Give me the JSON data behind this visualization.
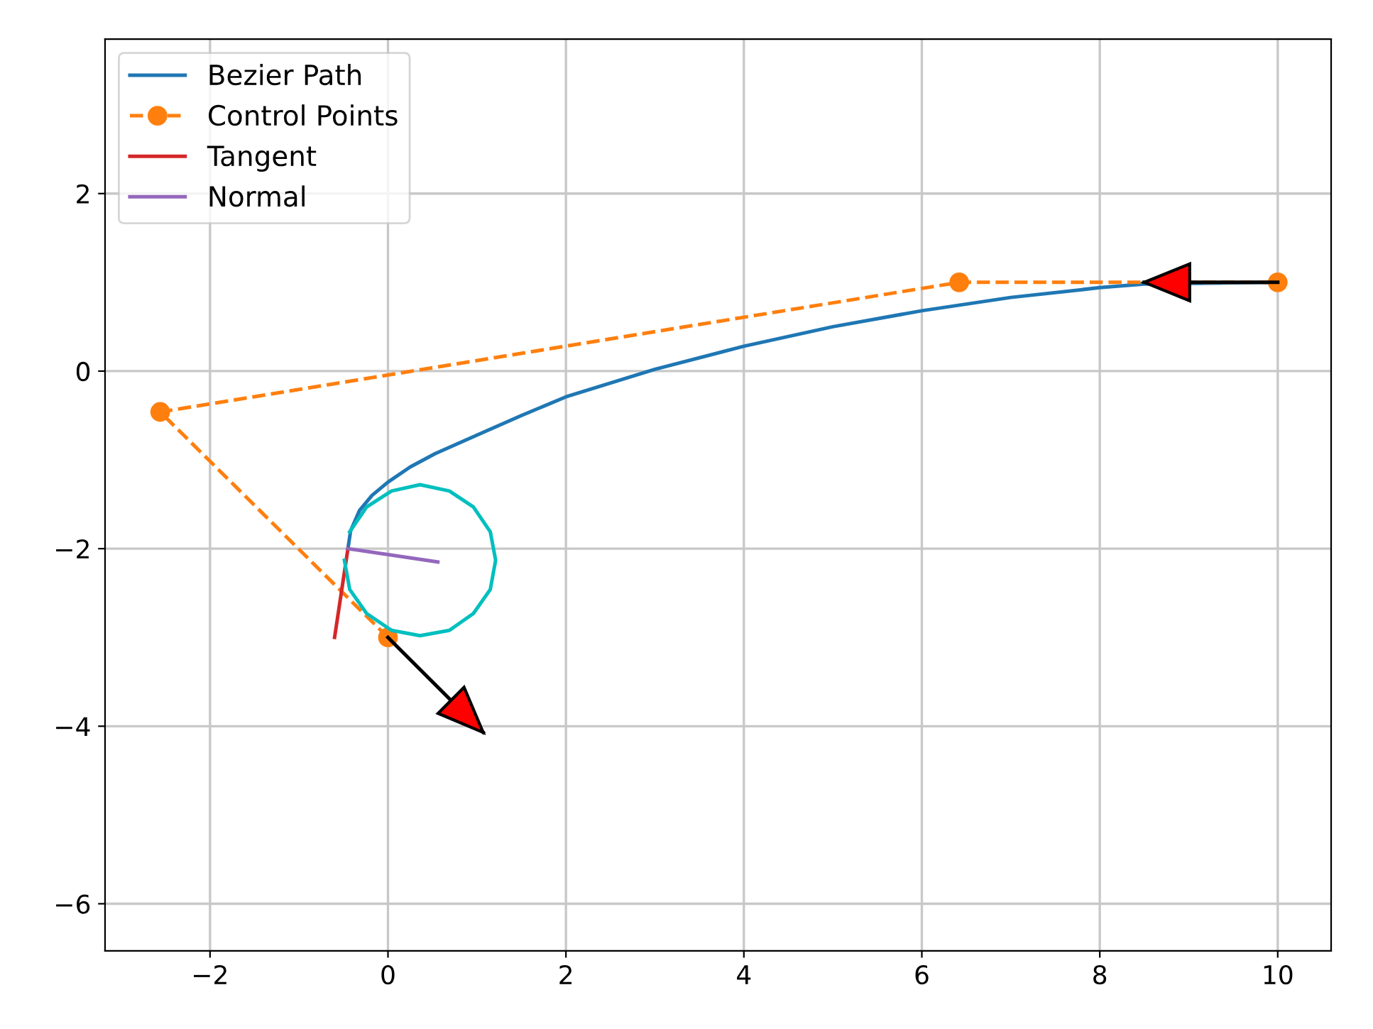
{
  "chart_data": {
    "type": "line",
    "xlim": [
      -3.18,
      10.6
    ],
    "ylim": [
      -6.53,
      3.74
    ],
    "xticks": [
      -2,
      0,
      2,
      4,
      6,
      8,
      10
    ],
    "yticks": [
      -6,
      -4,
      -2,
      0,
      2
    ],
    "grid": true,
    "legend": "top left",
    "series": [
      {
        "name": "Bezier Path",
        "color": "#1f77b4",
        "line_style": "solid",
        "marker": "none",
        "x": [
          -0.45,
          -0.42,
          -0.32,
          -0.18,
          0,
          0.25,
          0.53,
          1.07,
          1.5,
          2.0,
          3.0,
          4.0,
          5.0,
          6.0,
          7.0,
          8.0,
          8.5,
          10.0
        ],
        "values": [
          -2.0,
          -1.8,
          -1.57,
          -1.4,
          -1.25,
          -1.08,
          -0.93,
          -0.69,
          -0.5,
          -0.29,
          0.02,
          0.28,
          0.5,
          0.68,
          0.83,
          0.94,
          0.98,
          1.0
        ]
      },
      {
        "name": "Control Points",
        "color": "#ff7f0e",
        "line_style": "dashed",
        "marker": "circle",
        "x": [
          0,
          -2.56,
          6.42,
          10.0
        ],
        "values": [
          -3.0,
          -0.46,
          1.0,
          1.0
        ]
      },
      {
        "name": "Tangent",
        "color": "#d62728",
        "line_style": "solid",
        "marker": "none",
        "x": [
          -0.45,
          -0.6
        ],
        "values": [
          -2.0,
          -3.0
        ]
      },
      {
        "name": "Normal",
        "color": "#9467bd",
        "line_style": "solid",
        "marker": "none",
        "x": [
          -0.45,
          0.56
        ],
        "values": [
          -2.0,
          -2.15
        ]
      },
      {
        "color": "#00bfbf",
        "line_style": "solid",
        "marker": "none",
        "x": [
          -0.43,
          -0.24,
          0.04,
          0.36,
          0.69,
          0.96,
          1.15,
          1.21,
          1.15,
          0.96,
          0.69,
          0.36,
          0.04,
          -0.24,
          -0.43,
          -0.49
        ],
        "values": [
          -1.81,
          -1.53,
          -1.35,
          -1.28,
          -1.35,
          -1.53,
          -1.81,
          -2.13,
          -2.46,
          -2.73,
          -2.92,
          -2.98,
          -2.92,
          -2.73,
          -2.46,
          -2.13
        ]
      },
      {
        "type": "line",
        "color": "#000000",
        "x": [
          0,
          1.07
        ],
        "values": [
          -3.0,
          -4.07
        ]
      },
      {
        "type": "line",
        "color": "#000000",
        "x": [
          10.0,
          8.5
        ],
        "values": [
          1.0,
          1.0
        ]
      }
    ]
  }
}
